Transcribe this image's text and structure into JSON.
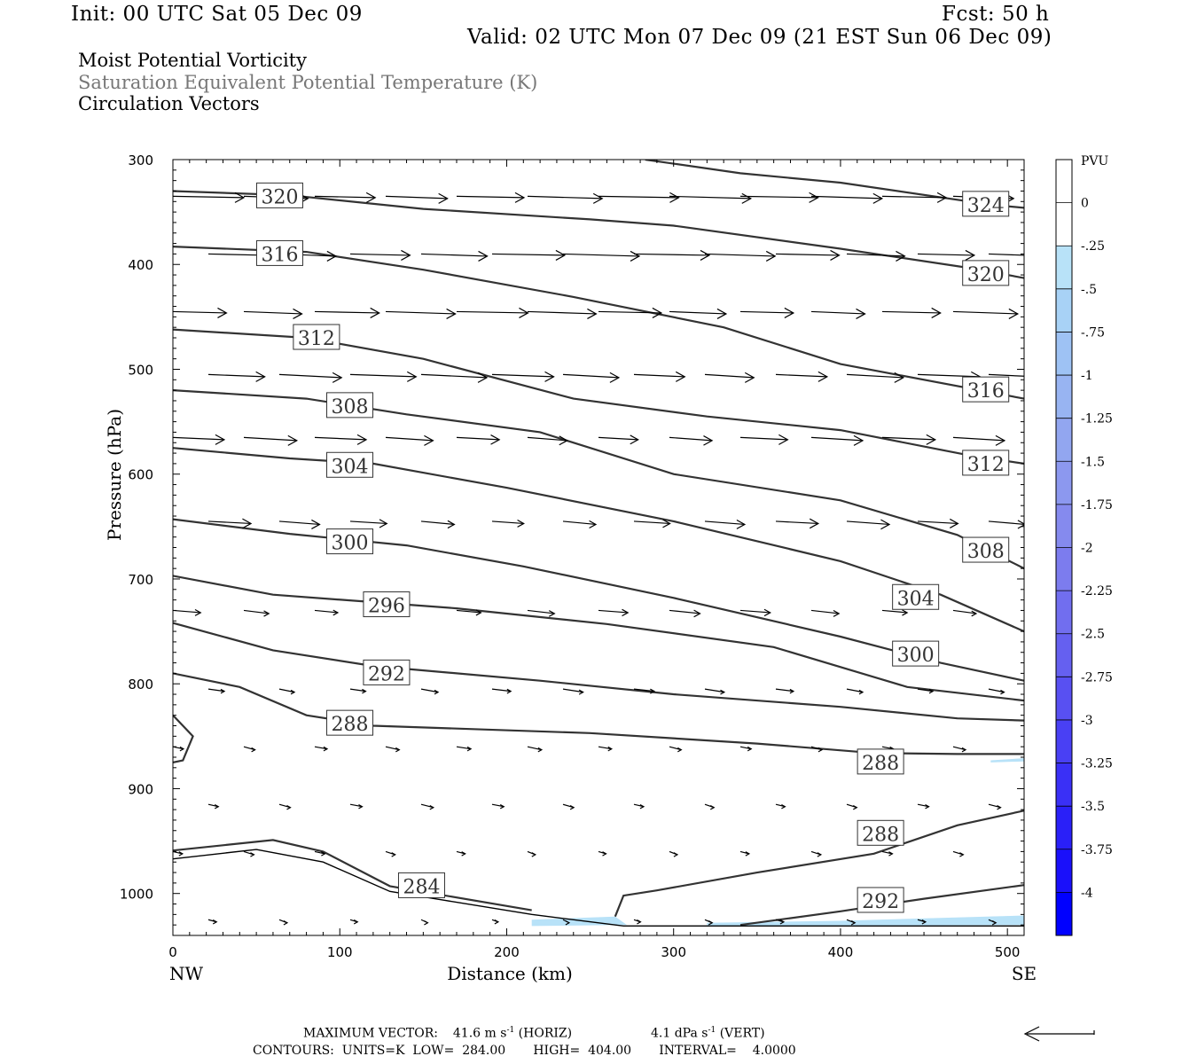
{
  "header": {
    "init": "Init: 00 UTC Sat 05 Dec 09",
    "fcst": "Fcst:   50 h",
    "valid": "Valid: 02 UTC Mon 07 Dec 09 (21 EST Sun 06 Dec 09)"
  },
  "titles": {
    "line1": "Moist Potential Vorticity",
    "line2": "Saturation Equivalent Potential Temperature (K)",
    "line3": "Circulation Vectors"
  },
  "colors": {
    "title_gray": "#777777",
    "contour": "#333333",
    "pv_fill": "#b8e2f8"
  },
  "footer": {
    "max_vector_label": "MAXIMUM VECTOR:",
    "max_horiz": "41.6 m s",
    "horiz_unit": "(HORIZ)",
    "max_vert": "4.1 dPa s",
    "vert_unit": "(VERT)",
    "contours": "CONTOURS:  UNITS=K  LOW=  284.00       HIGH=  404.00       INTERVAL=    4.0000"
  },
  "chart_data": {
    "type": "cross-section",
    "xlabel": "Distance (km)",
    "ylabel": "Pressure (hPa)",
    "xlim": [
      0,
      510
    ],
    "ylim": [
      1040,
      300
    ],
    "x_ticks": [
      0,
      100,
      200,
      300,
      400,
      500
    ],
    "y_ticks": [
      300,
      400,
      500,
      600,
      700,
      800,
      900,
      1000
    ],
    "x_end_labels": [
      "NW",
      "SE"
    ],
    "colorbar": {
      "title": "PVU",
      "labels": [
        "0",
        "-.25",
        "-.5",
        "-.75",
        "-1",
        "-1.25",
        "-1.5",
        "-1.75",
        "-2",
        "-2.25",
        "-2.5",
        "-2.75",
        "-3",
        "-3.25",
        "-3.5",
        "-3.75",
        "-4"
      ],
      "colors": [
        "#ffffff",
        "#ffffff",
        "#b8e2f8",
        "#a8d2f6",
        "#9ec2f4",
        "#98b4f2",
        "#92a6f0",
        "#8c98ef",
        "#858aee",
        "#7c7cee",
        "#716eef",
        "#6560f0",
        "#5850f2",
        "#4940f4",
        "#3a30f6",
        "#2a20f8",
        "#1a10fa",
        "#0000ff"
      ]
    },
    "contours": [
      {
        "value": 324,
        "points": [
          [
            283,
            300
          ],
          [
            340,
            313
          ],
          [
            400,
            322
          ],
          [
            490,
            343
          ],
          [
            510,
            346
          ]
        ]
      },
      {
        "value": 320,
        "points": [
          [
            0,
            330
          ],
          [
            70,
            334
          ],
          [
            150,
            347
          ],
          [
            250,
            357
          ],
          [
            300,
            363
          ],
          [
            400,
            385
          ],
          [
            480,
            404
          ],
          [
            510,
            413
          ]
        ]
      },
      {
        "value": 316,
        "points": [
          [
            0,
            383
          ],
          [
            80,
            388
          ],
          [
            150,
            405
          ],
          [
            240,
            431
          ],
          [
            330,
            460
          ],
          [
            400,
            495
          ],
          [
            510,
            528
          ]
        ]
      },
      {
        "value": 312,
        "points": [
          [
            0,
            462
          ],
          [
            80,
            470
          ],
          [
            150,
            490
          ],
          [
            240,
            528
          ],
          [
            320,
            545
          ],
          [
            400,
            558
          ],
          [
            480,
            583
          ],
          [
            510,
            590
          ]
        ]
      },
      {
        "value": 308,
        "points": [
          [
            0,
            520
          ],
          [
            80,
            528
          ],
          [
            140,
            543
          ],
          [
            220,
            560
          ],
          [
            300,
            600
          ],
          [
            400,
            625
          ],
          [
            470,
            658
          ],
          [
            510,
            690
          ]
        ]
      },
      {
        "value": 304,
        "points": [
          [
            0,
            575
          ],
          [
            70,
            585
          ],
          [
            120,
            590
          ],
          [
            200,
            613
          ],
          [
            300,
            645
          ],
          [
            400,
            683
          ],
          [
            460,
            715
          ],
          [
            510,
            750
          ]
        ]
      },
      {
        "value": 300,
        "points": [
          [
            0,
            643
          ],
          [
            70,
            657
          ],
          [
            140,
            668
          ],
          [
            210,
            688
          ],
          [
            300,
            718
          ],
          [
            400,
            755
          ],
          [
            460,
            780
          ],
          [
            510,
            797
          ]
        ]
      },
      {
        "value": 296,
        "points": [
          [
            0,
            697
          ],
          [
            60,
            715
          ],
          [
            170,
            728
          ],
          [
            260,
            743
          ],
          [
            360,
            765
          ],
          [
            440,
            803
          ],
          [
            510,
            816
          ]
        ]
      },
      {
        "value": 292,
        "points": [
          [
            0,
            742
          ],
          [
            60,
            768
          ],
          [
            120,
            783
          ],
          [
            220,
            797
          ],
          [
            300,
            810
          ],
          [
            400,
            822
          ],
          [
            470,
            833
          ],
          [
            510,
            835
          ]
        ]
      },
      {
        "value": 288,
        "points": [
          [
            0,
            790
          ],
          [
            40,
            803
          ],
          [
            80,
            830
          ],
          [
            120,
            840
          ],
          [
            250,
            847
          ],
          [
            350,
            857
          ],
          [
            420,
            866
          ],
          [
            470,
            867
          ],
          [
            510,
            867
          ]
        ]
      },
      {
        "value": 288,
        "points": [
          [
            265,
            1022
          ],
          [
            270,
            1002
          ],
          [
            290,
            997
          ],
          [
            350,
            980
          ],
          [
            420,
            962
          ],
          [
            470,
            935
          ],
          [
            510,
            921
          ]
        ]
      },
      {
        "value": 292,
        "points": [
          [
            340,
            1030
          ],
          [
            400,
            1017
          ],
          [
            450,
            1005
          ],
          [
            510,
            992
          ]
        ]
      },
      {
        "value": 284,
        "points": [
          [
            0,
            959
          ],
          [
            60,
            949
          ],
          [
            90,
            960
          ],
          [
            130,
            993
          ],
          [
            215,
            1016
          ]
        ]
      }
    ],
    "contour_labels": [
      {
        "value": "320",
        "x": 64,
        "y": 335
      },
      {
        "value": "316",
        "x": 64,
        "y": 390
      },
      {
        "value": "312",
        "x": 86,
        "y": 470
      },
      {
        "value": "308",
        "x": 106,
        "y": 535
      },
      {
        "value": "304",
        "x": 106,
        "y": 592
      },
      {
        "value": "300",
        "x": 106,
        "y": 665
      },
      {
        "value": "296",
        "x": 128,
        "y": 725
      },
      {
        "value": "292",
        "x": 128,
        "y": 790
      },
      {
        "value": "288",
        "x": 106,
        "y": 838
      },
      {
        "value": "284",
        "x": 149,
        "y": 993
      },
      {
        "value": "324",
        "x": 487,
        "y": 343
      },
      {
        "value": "320",
        "x": 487,
        "y": 409
      },
      {
        "value": "316",
        "x": 487,
        "y": 520
      },
      {
        "value": "312",
        "x": 487,
        "y": 590
      },
      {
        "value": "308",
        "x": 487,
        "y": 673
      },
      {
        "value": "304",
        "x": 445,
        "y": 718
      },
      {
        "value": "300",
        "x": 445,
        "y": 772
      },
      {
        "value": "288",
        "x": 424,
        "y": 875
      },
      {
        "value": "288",
        "x": 424,
        "y": 943
      },
      {
        "value": "292",
        "x": 424,
        "y": 1007
      }
    ]
  }
}
